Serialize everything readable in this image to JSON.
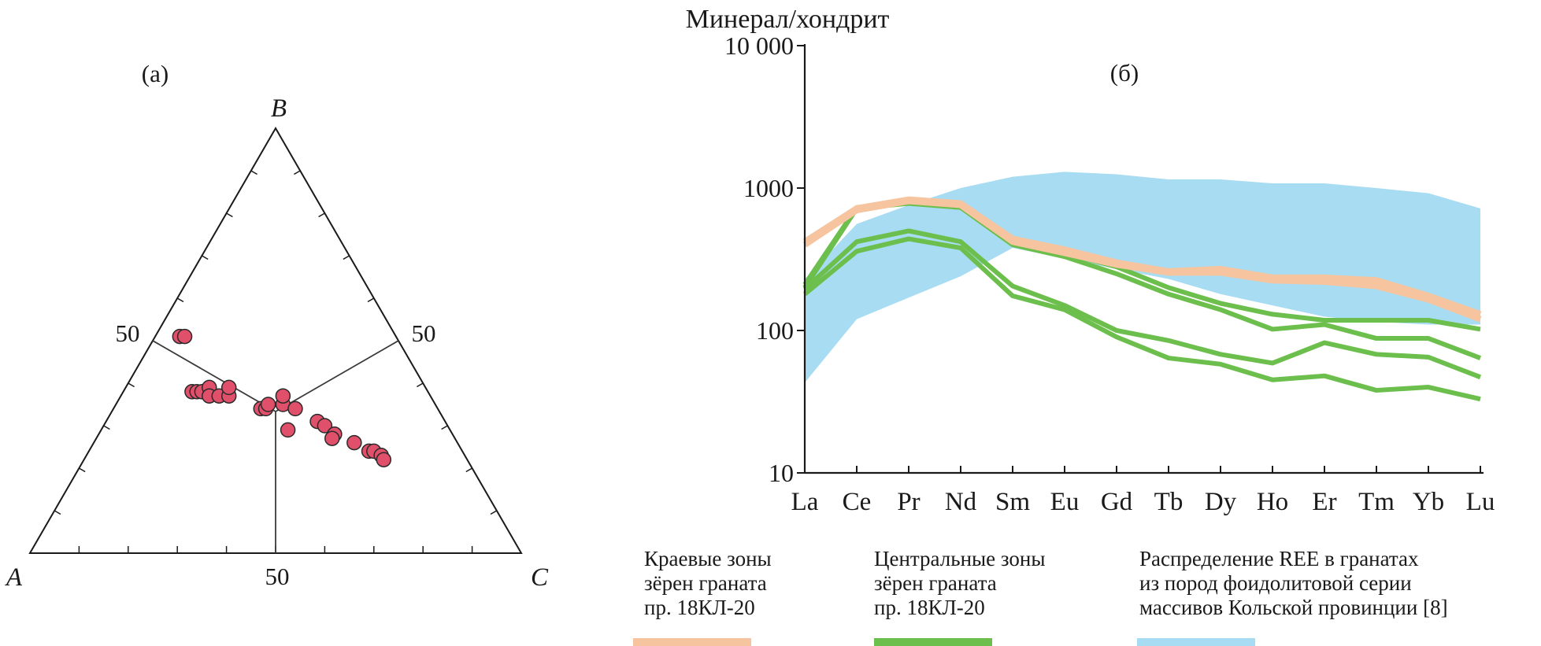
{
  "chart_data": [
    {
      "type": "scatter",
      "subtype": "ternary",
      "panel_label": "(a)",
      "vertex_labels": {
        "left": "A",
        "top": "B",
        "right": "C"
      },
      "tick_labels": {
        "left_edge": "50",
        "right_edge": "50",
        "bottom_edge": "50"
      },
      "marker_color": "#e0506a",
      "points_ABC_percent": [
        [
          44,
          51,
          5
        ],
        [
          43,
          51,
          6
        ],
        [
          48,
          38,
          14
        ],
        [
          47,
          38,
          15
        ],
        [
          46,
          38,
          16
        ],
        [
          44,
          39,
          17
        ],
        [
          45,
          37,
          18
        ],
        [
          43,
          37,
          20
        ],
        [
          41,
          37,
          22
        ],
        [
          40,
          39,
          21
        ],
        [
          36,
          34,
          30
        ],
        [
          35,
          34,
          31
        ],
        [
          34,
          35,
          31
        ],
        [
          31,
          35,
          34
        ],
        [
          30,
          37,
          33
        ],
        [
          29,
          34,
          37
        ],
        [
          33,
          29,
          38
        ],
        [
          26,
          31,
          43
        ],
        [
          25,
          30,
          45
        ],
        [
          24,
          28,
          48
        ],
        [
          25,
          27,
          48
        ],
        [
          21,
          26,
          53
        ],
        [
          19,
          24,
          57
        ],
        [
          18,
          24,
          58
        ],
        [
          17,
          23,
          60
        ],
        [
          17,
          22,
          61
        ]
      ]
    },
    {
      "type": "line",
      "panel_label": "(б)",
      "ylabel": "Минерал/хондрит",
      "yscale": "log",
      "ylim": [
        10,
        10000
      ],
      "ytick_labels": [
        "10",
        "100",
        "1000",
        "10 000"
      ],
      "yticks": [
        10,
        100,
        1000,
        10000
      ],
      "categories": [
        "La",
        "Ce",
        "Pr",
        "Nd",
        "Sm",
        "Eu",
        "Gd",
        "Tb",
        "Dy",
        "Ho",
        "Er",
        "Tm",
        "Yb",
        "Lu"
      ],
      "band": {
        "color": "#a8dcf2",
        "upper": [
          230,
          560,
          760,
          1000,
          1200,
          1300,
          1250,
          1150,
          1150,
          1080,
          1080,
          1000,
          920,
          720
        ],
        "lower": [
          43,
          120,
          170,
          240,
          380,
          320,
          270,
          230,
          180,
          150,
          125,
          115,
          110,
          110
        ]
      },
      "series": [
        {
          "group": "edge",
          "color": "#f6c49e",
          "values": [
            420,
            720,
            830,
            780,
            440,
            370,
            300,
            260,
            270,
            235,
            235,
            225,
            175,
            130
          ]
        },
        {
          "group": "edge",
          "color": "#f6c49e",
          "values": [
            400,
            700,
            810,
            760,
            420,
            350,
            290,
            255,
            255,
            225,
            220,
            205,
            165,
            120
          ]
        },
        {
          "group": "central",
          "color": "#6cbf4c",
          "values": [
            195,
            420,
            500,
            420,
            205,
            150,
            100,
            85,
            68,
            59,
            82,
            68,
            65,
            47
          ]
        },
        {
          "group": "central",
          "color": "#6cbf4c",
          "values": [
            180,
            360,
            440,
            380,
            175,
            140,
            90,
            64,
            58,
            45,
            48,
            38,
            40,
            33
          ]
        },
        {
          "group": "central",
          "color": "#6cbf4c",
          "values": [
            200,
            720,
            780,
            730,
            400,
            330,
            250,
            180,
            140,
            102,
            110,
            88,
            88,
            64
          ]
        },
        {
          "group": "central",
          "color": "#6cbf4c",
          "values": [
            210,
            730,
            790,
            740,
            410,
            350,
            280,
            200,
            155,
            130,
            118,
            118,
            118,
            102
          ]
        }
      ]
    }
  ],
  "legend": [
    {
      "lines": [
        "Краевые зоны",
        "зёрен граната",
        "пр. 18КЛ-20"
      ],
      "color": "#f6c49e"
    },
    {
      "lines": [
        "Центральные зоны",
        "зёрен граната",
        "пр. 18КЛ-20"
      ],
      "color": "#6cbf4c"
    },
    {
      "lines": [
        "Распределение REE в гранатах",
        "из пород фоидолитовой серии",
        "массивов Кольской провинции [8]"
      ],
      "color": "#a8dcf2"
    }
  ]
}
